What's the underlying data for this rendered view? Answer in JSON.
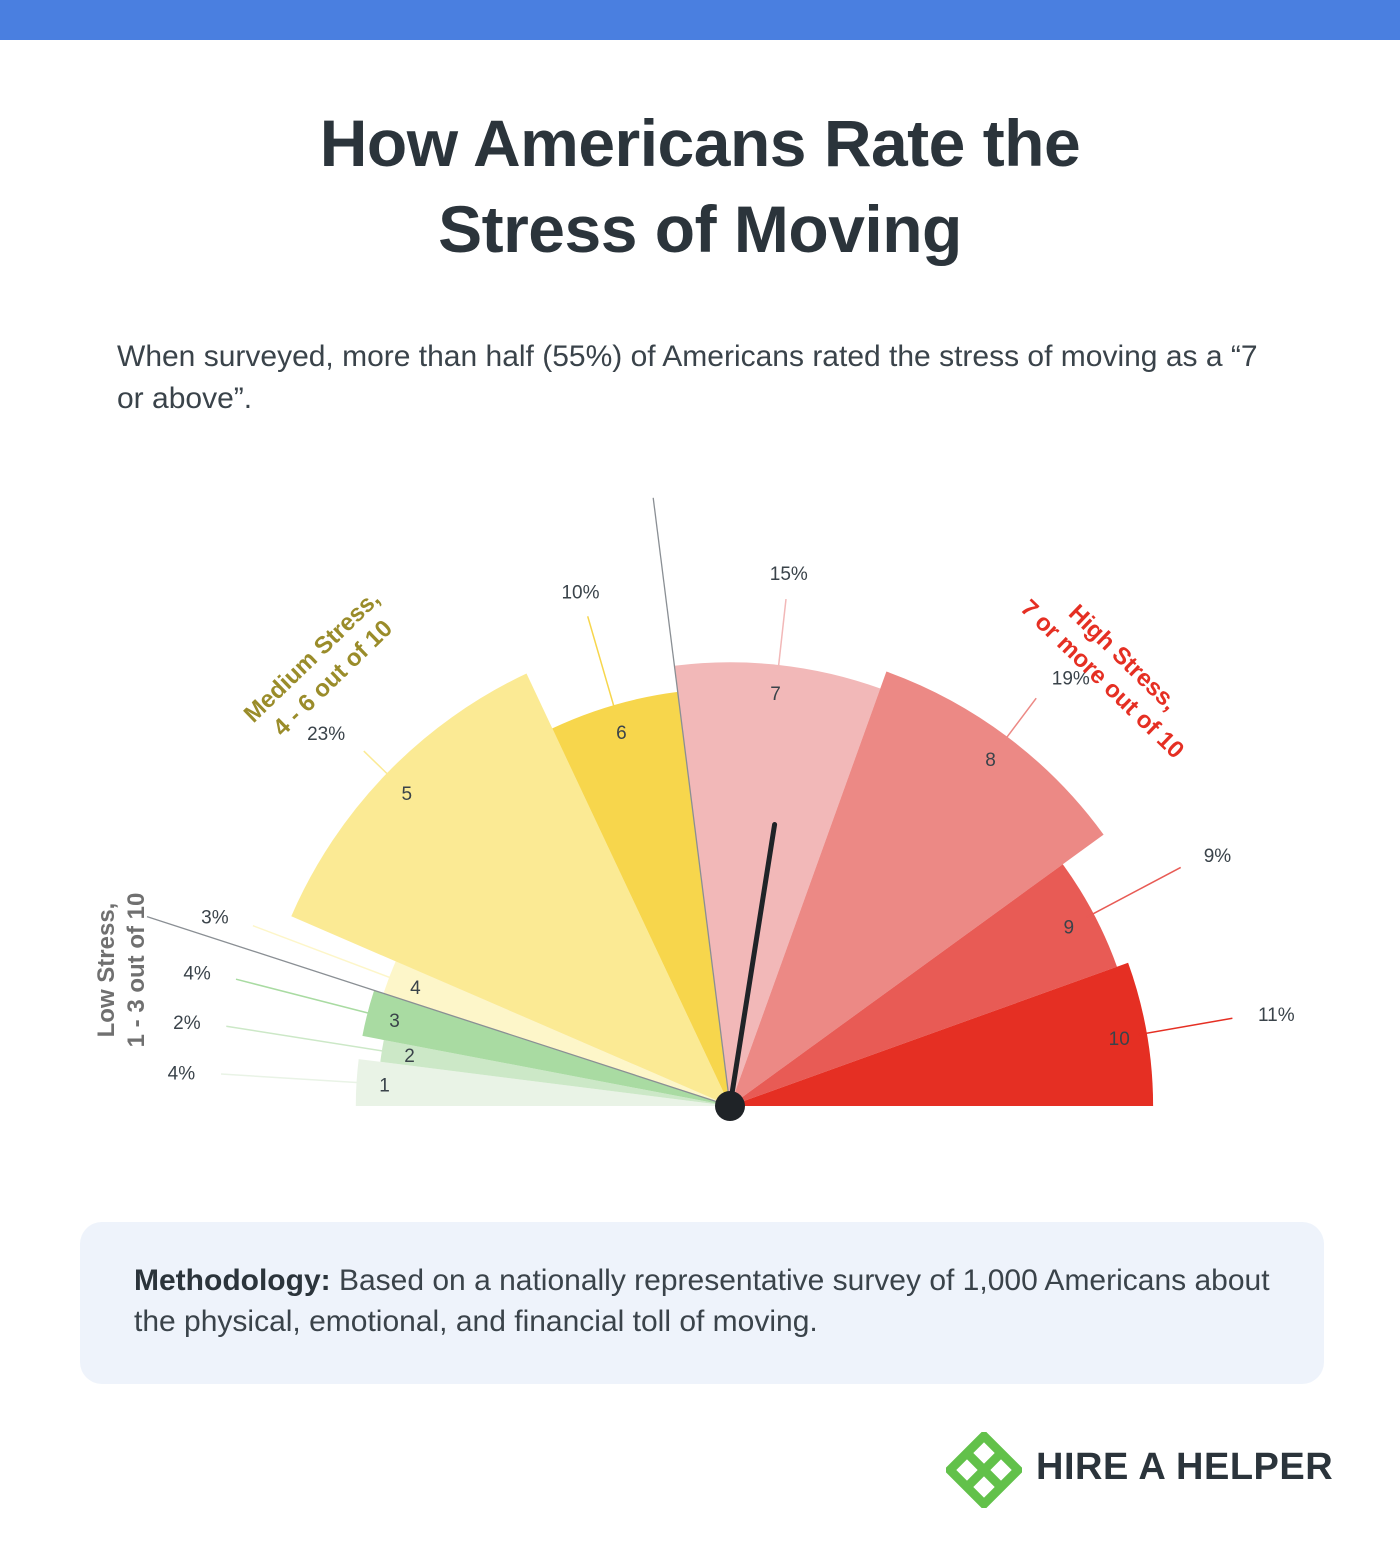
{
  "title": {
    "line1": "How Americans Rate the",
    "line2": "Stress of Moving"
  },
  "subtitle": "When surveyed, more than half (55%) of Americans rated the stress of moving as a “7 or above”.",
  "chart_data": {
    "type": "gauge",
    "title": "How Americans Rate the Stress of Moving",
    "categories": [
      "1",
      "2",
      "3",
      "4",
      "5",
      "6",
      "7",
      "8",
      "9",
      "10"
    ],
    "values": [
      4,
      2,
      4,
      3,
      23,
      10,
      15,
      19,
      9,
      11
    ],
    "value_labels": [
      "4%",
      "2%",
      "4%",
      "3%",
      "23%",
      "10%",
      "15%",
      "19%",
      "9%",
      "11%"
    ],
    "colors": [
      "#e9f3e6",
      "#cce8c7",
      "#a9dba2",
      "#fdf6c9",
      "#fbea94",
      "#f7d64c",
      "#f2b8b8",
      "#ec8985",
      "#e85b55",
      "#e52f23"
    ],
    "groups": [
      {
        "name": "Low Stress,",
        "range": "1 - 3 out of 10",
        "color": "#707070",
        "categories": [
          "1",
          "2",
          "3"
        ]
      },
      {
        "name": "Medium Stress,",
        "range": "4 - 6 out of 10",
        "color": "#9a8c2a",
        "categories": [
          "4",
          "5",
          "6"
        ]
      },
      {
        "name": "High Stress,",
        "range": "7 or more out of 10",
        "color": "#e52f23",
        "categories": [
          "7",
          "8",
          "9",
          "10"
        ]
      }
    ],
    "needle_value": 55,
    "needle_unit": "% rated 7 or above"
  },
  "methodology": {
    "label": "Methodology:",
    "text": " Based on a nationally representative survey of 1,000 Americans about the physical, emotional, and financial toll of moving."
  },
  "brand": {
    "name": "HIRE A HELPER",
    "logo_color": "#62c14a"
  }
}
